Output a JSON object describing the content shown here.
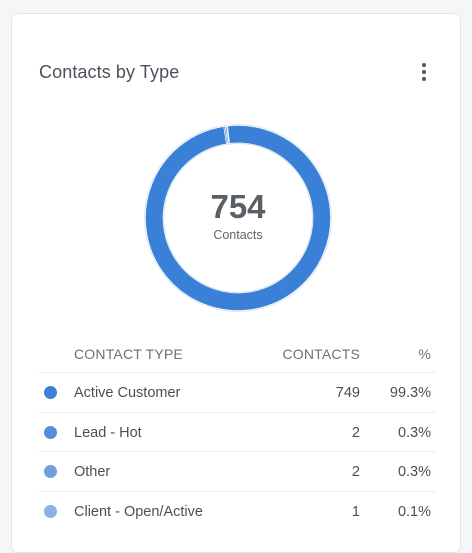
{
  "widget": {
    "title": "Contacts by Type",
    "menu_icon": "more-vertical-icon"
  },
  "summary": {
    "total": "754",
    "label": "Contacts"
  },
  "table": {
    "headers": {
      "type": "CONTACT TYPE",
      "contacts": "CONTACTS",
      "percent": "%"
    },
    "rows": [
      {
        "name": "Active Customer",
        "count": "749",
        "percent": "99.3%",
        "color": "#3a80d6"
      },
      {
        "name": "Lead - Hot",
        "count": "2",
        "percent": "0.3%",
        "color": "#568fd8"
      },
      {
        "name": "Other",
        "count": "2",
        "percent": "0.3%",
        "color": "#6f9fdc"
      },
      {
        "name": "Client - Open/Active",
        "count": "1",
        "percent": "0.1%",
        "color": "#8bb2e2"
      }
    ]
  },
  "chart_data": {
    "type": "pie",
    "categories": [
      "Active Customer",
      "Lead - Hot",
      "Other",
      "Client - Open/Active"
    ],
    "values": [
      749,
      2,
      2,
      1
    ],
    "colors": [
      "#3a80d6",
      "#568fd8",
      "#6f9fdc",
      "#8bb2e2"
    ],
    "hole": true
  }
}
